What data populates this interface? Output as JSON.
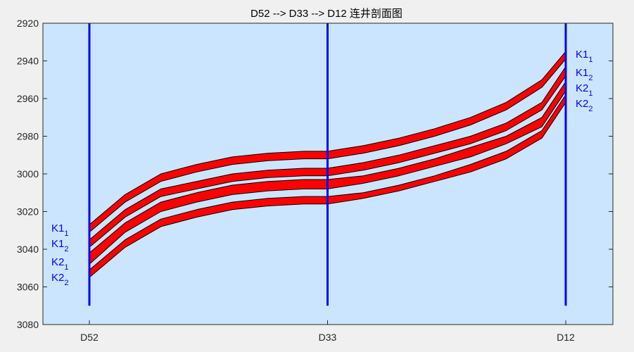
{
  "chart_data": {
    "type": "line",
    "title": "D52 --> D33 --> D12 连井剖面图",
    "xlabel": "",
    "ylabel": "",
    "ylim": [
      3080,
      2920
    ],
    "y_reversed": true,
    "yticks": [
      2920,
      2940,
      2960,
      2980,
      3000,
      3020,
      3040,
      3060,
      3080
    ],
    "grid": false,
    "legend": "none",
    "wells": [
      {
        "name": "D52",
        "position": 0,
        "top": 2920,
        "bottom": 3070
      },
      {
        "name": "D33",
        "position": 1,
        "top": 2920,
        "bottom": 3070
      },
      {
        "name": "D12",
        "position": 2,
        "top": 2920,
        "bottom": 3070
      }
    ],
    "x": [
      0,
      0.15,
      0.3,
      0.45,
      0.6,
      0.75,
      0.9,
      1.0,
      1.15,
      1.3,
      1.45,
      1.6,
      1.75,
      1.9,
      2.0
    ],
    "layers": [
      {
        "name": "K1",
        "sub": "1",
        "top": [
          3027,
          3011,
          3000,
          2995,
          2991,
          2989,
          2988,
          2988,
          2985,
          2981,
          2976,
          2970,
          2962,
          2950,
          2935
        ],
        "bottom": [
          3031,
          3015,
          3004,
          2999,
          2995,
          2993,
          2992,
          2992,
          2989,
          2985,
          2980,
          2974,
          2966,
          2954,
          2939
        ]
      },
      {
        "name": "K1",
        "sub": "2",
        "top": [
          3035,
          3019,
          3008,
          3004,
          3000,
          2998,
          2997,
          2997,
          2994,
          2990,
          2985,
          2980,
          2973,
          2962,
          2943
        ],
        "bottom": [
          3039,
          3023,
          3012,
          3008,
          3004,
          3002,
          3001,
          3001,
          2998,
          2994,
          2989,
          2984,
          2977,
          2966,
          2948
        ]
      },
      {
        "name": "K2",
        "sub": "1",
        "top": [
          3042,
          3026,
          3015,
          3010,
          3006,
          3004,
          3003,
          3003,
          3001,
          2997,
          2992,
          2986,
          2980,
          2970,
          2951
        ],
        "bottom": [
          3048,
          3031,
          3020,
          3015,
          3011,
          3009,
          3008,
          3008,
          3005,
          3001,
          2996,
          2991,
          2984,
          2975,
          2956
        ]
      },
      {
        "name": "K2",
        "sub": "2",
        "top": [
          3051,
          3035,
          3024,
          3019,
          3015,
          3013,
          3012,
          3012,
          3010,
          3006,
          3001,
          2995,
          2988,
          2977,
          2958
        ],
        "bottom": [
          3055,
          3039,
          3028,
          3023,
          3019,
          3017,
          3016,
          3016,
          3013,
          3009,
          3004,
          2999,
          2992,
          2981,
          2962
        ]
      }
    ],
    "colors": {
      "layer_fill": "#ff0000",
      "layer_edge": "#000000",
      "well": "#0000ff",
      "label": "#0000ff",
      "axes_bg": "#cce5ff",
      "figure_bg": "#f0f0f0",
      "axis_line": "#262626"
    }
  }
}
